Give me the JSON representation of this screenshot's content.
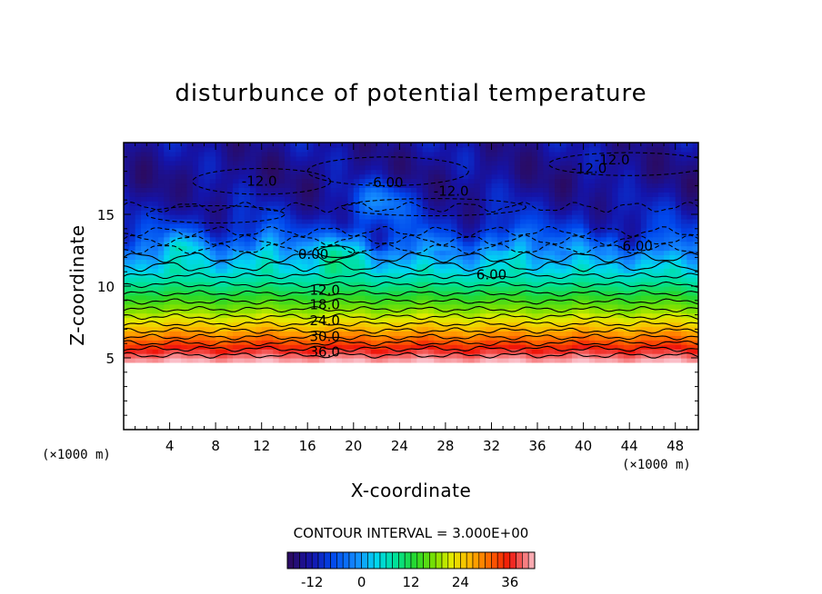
{
  "chart_data": {
    "type": "heatmap",
    "title": "disturbunce of potential temperature",
    "xlabel": "X-coordinate",
    "ylabel": "Z-coordinate",
    "x_unit": "(×1000 m)",
    "y_unit": "(×1000 m)",
    "xlim": [
      0,
      50
    ],
    "ylim": [
      0,
      20
    ],
    "x_ticks": [
      "4",
      "8",
      "12",
      "16",
      "20",
      "24",
      "28",
      "32",
      "36",
      "40",
      "44",
      "48"
    ],
    "y_ticks": [
      "5",
      "10",
      "15"
    ],
    "contour_interval_text": "CONTOUR INTERVAL = 3.000E+00",
    "contour_interval": 3.0,
    "colorbar": {
      "min": -18,
      "max": 42,
      "ticks": [
        "-12",
        "0",
        "12",
        "24",
        "36"
      ]
    },
    "contour_labels": [
      {
        "text": "-12.0",
        "x": 11.8,
        "z": 17.3
      },
      {
        "text": "-6.00",
        "x": 22.8,
        "z": 17.2
      },
      {
        "text": "-12.0",
        "x": 28.5,
        "z": 16.6
      },
      {
        "text": "-12.0",
        "x": 42.5,
        "z": 18.8
      },
      {
        "text": "-12.0",
        "x": 40.5,
        "z": 18.2
      },
      {
        "text": "0.00",
        "x": 16.5,
        "z": 12.2
      },
      {
        "text": "-6.00",
        "x": 44.5,
        "z": 12.8
      },
      {
        "text": "6.00",
        "x": 32.0,
        "z": 10.8
      },
      {
        "text": "12.0",
        "x": 17.5,
        "z": 9.7
      },
      {
        "text": "18.0",
        "x": 17.5,
        "z": 8.7
      },
      {
        "text": "24.0",
        "x": 17.5,
        "z": 7.6
      },
      {
        "text": "30.0",
        "x": 17.5,
        "z": 6.5
      },
      {
        "text": "36.0",
        "x": 17.5,
        "z": 5.4
      }
    ],
    "field_profile": [
      {
        "z": 4.7,
        "value": 42
      },
      {
        "z": 5.5,
        "value": 37
      },
      {
        "z": 6.3,
        "value": 31
      },
      {
        "z": 7.2,
        "value": 25
      },
      {
        "z": 8.2,
        "value": 19
      },
      {
        "z": 9.3,
        "value": 13
      },
      {
        "z": 10.5,
        "value": 7
      },
      {
        "z": 11.6,
        "value": 2
      },
      {
        "z": 12.6,
        "value": -3
      },
      {
        "z": 13.8,
        "value": -9
      },
      {
        "z": 15.5,
        "value": -12
      },
      {
        "z": 17.5,
        "value": -14
      },
      {
        "z": 19.8,
        "value": -13
      }
    ],
    "anomalies": [
      {
        "x": 18.5,
        "z": 12.4,
        "value": 6
      },
      {
        "x": 22.5,
        "z": 16.0,
        "value": -3
      },
      {
        "x": 34.5,
        "z": 13.0,
        "value": 0
      },
      {
        "x": 5.0,
        "z": 12.8,
        "value": 1
      },
      {
        "x": 12.0,
        "z": 12.8,
        "value": 0
      }
    ],
    "grid": false
  }
}
